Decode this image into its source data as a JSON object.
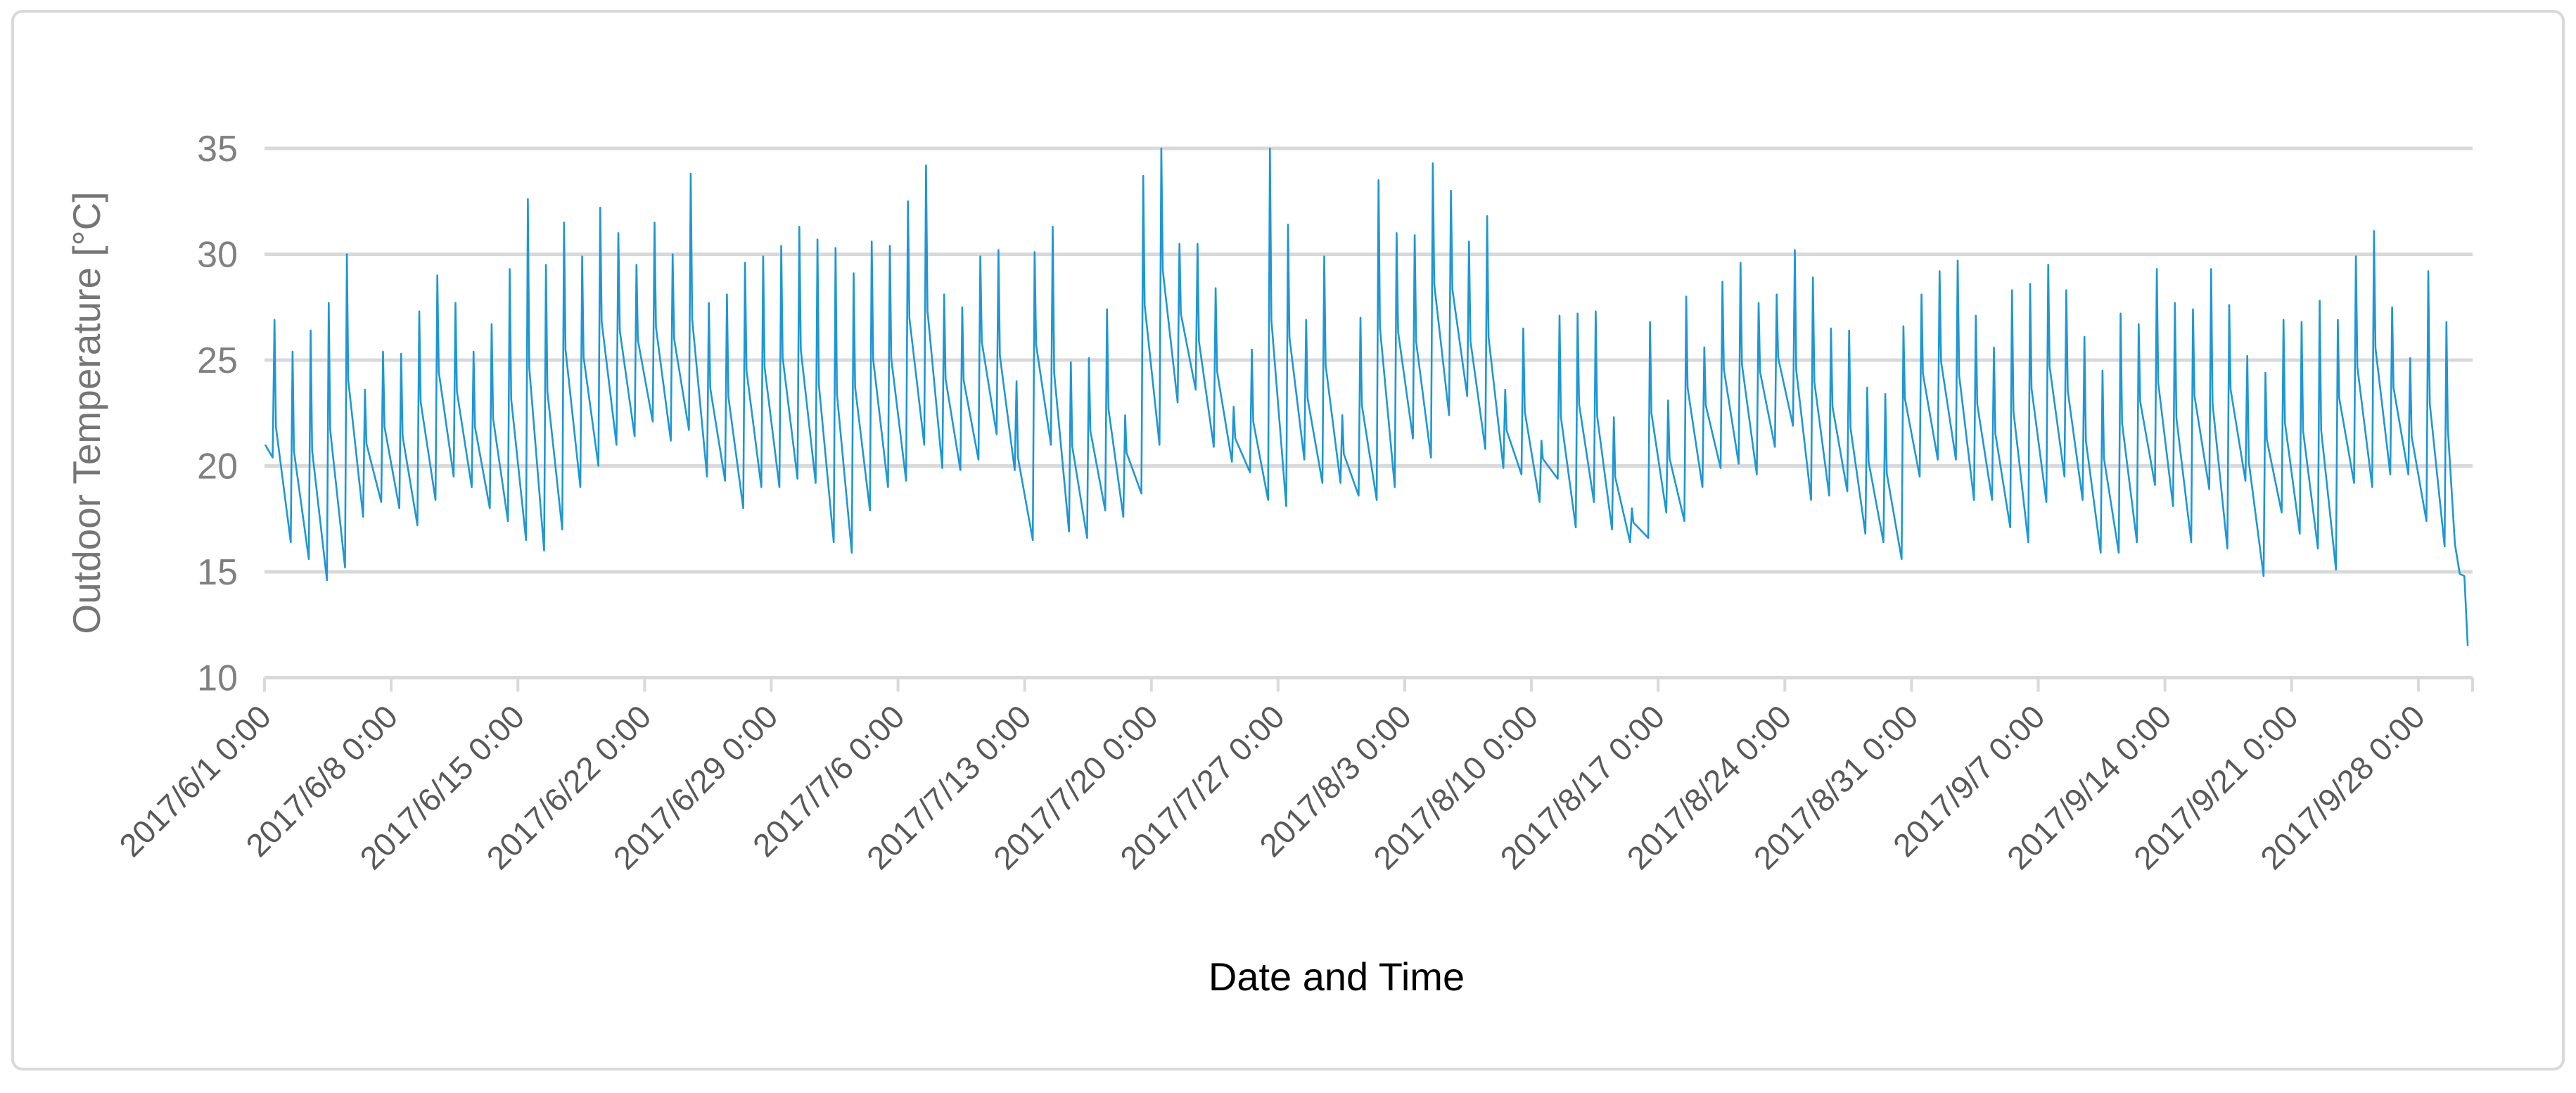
{
  "chart_data": {
    "type": "line",
    "title": "",
    "xlabel": "Date and Time",
    "ylabel": "Outdoor Temperature [°C]",
    "ylim": [
      10,
      35
    ],
    "y_ticks": [
      35,
      30,
      25,
      20,
      15,
      10
    ],
    "grid": "horizontal-only",
    "legend": "none",
    "x_tick_interval_days": 7,
    "x_tick_labels": [
      "2017/6/1 0:00",
      "2017/6/8 0:00",
      "2017/6/15 0:00",
      "2017/6/22 0:00",
      "2017/6/29 0:00",
      "2017/7/6 0:00",
      "2017/7/13 0:00",
      "2017/7/20 0:00",
      "2017/7/27 0:00",
      "2017/8/3 0:00",
      "2017/8/10 0:00",
      "2017/8/17 0:00",
      "2017/8/24 0:00",
      "2017/8/31 0:00",
      "2017/9/7 0:00",
      "2017/9/14 0:00",
      "2017/9/21 0:00",
      "2017/9/28 0:00"
    ],
    "series_name": "Outdoor Temperature",
    "unit": "°C",
    "start_value_jun1_0000": 21.0,
    "daily_min_max": [
      {
        "date": "2017/6/1",
        "min": 20.4,
        "max": 26.9
      },
      {
        "date": "2017/6/2",
        "min": 16.4,
        "max": 25.4
      },
      {
        "date": "2017/6/3",
        "min": 15.6,
        "max": 26.4
      },
      {
        "date": "2017/6/4",
        "min": 14.6,
        "max": 27.7
      },
      {
        "date": "2017/6/5",
        "min": 15.2,
        "max": 30.0
      },
      {
        "date": "2017/6/6",
        "min": 17.6,
        "max": 23.6
      },
      {
        "date": "2017/6/7",
        "min": 18.3,
        "max": 25.4
      },
      {
        "date": "2017/6/8",
        "min": 18.0,
        "max": 25.3
      },
      {
        "date": "2017/6/9",
        "min": 17.2,
        "max": 27.3
      },
      {
        "date": "2017/6/10",
        "min": 18.4,
        "max": 29.0
      },
      {
        "date": "2017/6/11",
        "min": 19.5,
        "max": 27.7
      },
      {
        "date": "2017/6/12",
        "min": 19.0,
        "max": 25.4
      },
      {
        "date": "2017/6/13",
        "min": 18.0,
        "max": 26.7
      },
      {
        "date": "2017/6/14",
        "min": 17.4,
        "max": 29.3
      },
      {
        "date": "2017/6/15",
        "min": 16.5,
        "max": 32.6
      },
      {
        "date": "2017/6/16",
        "min": 16.0,
        "max": 29.5
      },
      {
        "date": "2017/6/17",
        "min": 17.0,
        "max": 31.5
      },
      {
        "date": "2017/6/18",
        "min": 19.0,
        "max": 29.9
      },
      {
        "date": "2017/6/19",
        "min": 20.0,
        "max": 32.2
      },
      {
        "date": "2017/6/20",
        "min": 21.0,
        "max": 31.0
      },
      {
        "date": "2017/6/21",
        "min": 21.4,
        "max": 29.5
      },
      {
        "date": "2017/6/22",
        "min": 22.1,
        "max": 31.5
      },
      {
        "date": "2017/6/23",
        "min": 21.2,
        "max": 30.0
      },
      {
        "date": "2017/6/24",
        "min": 21.7,
        "max": 33.8
      },
      {
        "date": "2017/6/25",
        "min": 19.5,
        "max": 27.7
      },
      {
        "date": "2017/6/26",
        "min": 19.3,
        "max": 28.1
      },
      {
        "date": "2017/6/27",
        "min": 18.0,
        "max": 29.6
      },
      {
        "date": "2017/6/28",
        "min": 19.0,
        "max": 29.9
      },
      {
        "date": "2017/6/29",
        "min": 19.0,
        "max": 30.4
      },
      {
        "date": "2017/6/30",
        "min": 19.4,
        "max": 31.3
      },
      {
        "date": "2017/7/1",
        "min": 19.2,
        "max": 30.7
      },
      {
        "date": "2017/7/2",
        "min": 16.4,
        "max": 30.3
      },
      {
        "date": "2017/7/3",
        "min": 15.9,
        "max": 29.1
      },
      {
        "date": "2017/7/4",
        "min": 17.9,
        "max": 30.6
      },
      {
        "date": "2017/7/5",
        "min": 19.0,
        "max": 30.4
      },
      {
        "date": "2017/7/6",
        "min": 19.3,
        "max": 32.5
      },
      {
        "date": "2017/7/7",
        "min": 21.0,
        "max": 34.2
      },
      {
        "date": "2017/7/8",
        "min": 19.9,
        "max": 28.1
      },
      {
        "date": "2017/7/9",
        "min": 19.8,
        "max": 27.5
      },
      {
        "date": "2017/7/10",
        "min": 20.3,
        "max": 29.9
      },
      {
        "date": "2017/7/11",
        "min": 21.5,
        "max": 30.2
      },
      {
        "date": "2017/7/12",
        "min": 19.8,
        "max": 24.0
      },
      {
        "date": "2017/7/13",
        "min": 16.5,
        "max": 30.1
      },
      {
        "date": "2017/7/14",
        "min": 21.0,
        "max": 31.3
      },
      {
        "date": "2017/7/15",
        "min": 16.9,
        "max": 24.9
      },
      {
        "date": "2017/7/16",
        "min": 16.6,
        "max": 25.1
      },
      {
        "date": "2017/7/17",
        "min": 17.9,
        "max": 27.4
      },
      {
        "date": "2017/7/18",
        "min": 17.6,
        "max": 22.4
      },
      {
        "date": "2017/7/19",
        "min": 18.7,
        "max": 33.7
      },
      {
        "date": "2017/7/20",
        "min": 21.0,
        "max": 35.0
      },
      {
        "date": "2017/7/21",
        "min": 23.0,
        "max": 30.5
      },
      {
        "date": "2017/7/22",
        "min": 23.6,
        "max": 30.5
      },
      {
        "date": "2017/7/23",
        "min": 20.9,
        "max": 28.4
      },
      {
        "date": "2017/7/24",
        "min": 20.2,
        "max": 22.8
      },
      {
        "date": "2017/7/25",
        "min": 19.7,
        "max": 25.5
      },
      {
        "date": "2017/7/26",
        "min": 18.4,
        "max": 35.0
      },
      {
        "date": "2017/7/27",
        "min": 18.1,
        "max": 31.4
      },
      {
        "date": "2017/7/28",
        "min": 20.3,
        "max": 26.9
      },
      {
        "date": "2017/7/29",
        "min": 19.2,
        "max": 29.9
      },
      {
        "date": "2017/7/30",
        "min": 19.2,
        "max": 22.4
      },
      {
        "date": "2017/7/31",
        "min": 18.6,
        "max": 27.0
      },
      {
        "date": "2017/8/1",
        "min": 18.4,
        "max": 33.5
      },
      {
        "date": "2017/8/2",
        "min": 19.0,
        "max": 31.0
      },
      {
        "date": "2017/8/3",
        "min": 21.3,
        "max": 30.9
      },
      {
        "date": "2017/8/4",
        "min": 20.4,
        "max": 34.3
      },
      {
        "date": "2017/8/5",
        "min": 22.4,
        "max": 33.0
      },
      {
        "date": "2017/8/6",
        "min": 23.3,
        "max": 30.6
      },
      {
        "date": "2017/8/7",
        "min": 20.8,
        "max": 31.8
      },
      {
        "date": "2017/8/8",
        "min": 19.9,
        "max": 23.6
      },
      {
        "date": "2017/8/9",
        "min": 19.6,
        "max": 26.5
      },
      {
        "date": "2017/8/10",
        "min": 18.3,
        "max": 21.2
      },
      {
        "date": "2017/8/11",
        "min": 19.4,
        "max": 27.1
      },
      {
        "date": "2017/8/12",
        "min": 17.1,
        "max": 27.2
      },
      {
        "date": "2017/8/13",
        "min": 18.3,
        "max": 27.3
      },
      {
        "date": "2017/8/14",
        "min": 17.0,
        "max": 22.3
      },
      {
        "date": "2017/8/15",
        "min": 16.4,
        "max": 18.0
      },
      {
        "date": "2017/8/16",
        "min": 16.6,
        "max": 26.8
      },
      {
        "date": "2017/8/17",
        "min": 17.8,
        "max": 23.1
      },
      {
        "date": "2017/8/18",
        "min": 17.4,
        "max": 28.0
      },
      {
        "date": "2017/8/19",
        "min": 19.0,
        "max": 25.6
      },
      {
        "date": "2017/8/20",
        "min": 19.9,
        "max": 28.7
      },
      {
        "date": "2017/8/21",
        "min": 20.1,
        "max": 29.6
      },
      {
        "date": "2017/8/22",
        "min": 19.6,
        "max": 27.7
      },
      {
        "date": "2017/8/23",
        "min": 20.9,
        "max": 28.1
      },
      {
        "date": "2017/8/24",
        "min": 21.9,
        "max": 30.2
      },
      {
        "date": "2017/8/25",
        "min": 18.4,
        "max": 28.9
      },
      {
        "date": "2017/8/26",
        "min": 18.6,
        "max": 26.5
      },
      {
        "date": "2017/8/27",
        "min": 18.8,
        "max": 26.4
      },
      {
        "date": "2017/8/28",
        "min": 16.8,
        "max": 23.7
      },
      {
        "date": "2017/8/29",
        "min": 16.4,
        "max": 23.4
      },
      {
        "date": "2017/8/30",
        "min": 15.6,
        "max": 26.6
      },
      {
        "date": "2017/8/31",
        "min": 19.5,
        "max": 28.1
      },
      {
        "date": "2017/9/1",
        "min": 20.3,
        "max": 29.2
      },
      {
        "date": "2017/9/2",
        "min": 20.3,
        "max": 29.7
      },
      {
        "date": "2017/9/3",
        "min": 18.4,
        "max": 27.1
      },
      {
        "date": "2017/9/4",
        "min": 18.4,
        "max": 25.6
      },
      {
        "date": "2017/9/5",
        "min": 17.1,
        "max": 28.3
      },
      {
        "date": "2017/9/6",
        "min": 16.4,
        "max": 28.6
      },
      {
        "date": "2017/9/7",
        "min": 18.3,
        "max": 29.5
      },
      {
        "date": "2017/9/8",
        "min": 19.5,
        "max": 28.3
      },
      {
        "date": "2017/9/9",
        "min": 18.4,
        "max": 26.1
      },
      {
        "date": "2017/9/10",
        "min": 15.9,
        "max": 24.5
      },
      {
        "date": "2017/9/11",
        "min": 15.9,
        "max": 27.2
      },
      {
        "date": "2017/9/12",
        "min": 16.4,
        "max": 26.7
      },
      {
        "date": "2017/9/13",
        "min": 19.1,
        "max": 29.3
      },
      {
        "date": "2017/9/14",
        "min": 18.1,
        "max": 27.7
      },
      {
        "date": "2017/9/15",
        "min": 16.4,
        "max": 27.4
      },
      {
        "date": "2017/9/16",
        "min": 18.9,
        "max": 29.3
      },
      {
        "date": "2017/9/17",
        "min": 16.1,
        "max": 27.6
      },
      {
        "date": "2017/9/18",
        "min": 19.3,
        "max": 25.2
      },
      {
        "date": "2017/9/19",
        "min": 14.8,
        "max": 24.4
      },
      {
        "date": "2017/9/20",
        "min": 17.8,
        "max": 26.9
      },
      {
        "date": "2017/9/21",
        "min": 16.8,
        "max": 26.8
      },
      {
        "date": "2017/9/22",
        "min": 16.1,
        "max": 27.8
      },
      {
        "date": "2017/9/23",
        "min": 15.1,
        "max": 26.9
      },
      {
        "date": "2017/9/24",
        "min": 19.2,
        "max": 29.9
      },
      {
        "date": "2017/9/25",
        "min": 19.0,
        "max": 31.1
      },
      {
        "date": "2017/9/26",
        "min": 19.6,
        "max": 27.5
      },
      {
        "date": "2017/9/27",
        "min": 19.6,
        "max": 25.1
      },
      {
        "date": "2017/9/28",
        "min": 17.4,
        "max": 29.2
      },
      {
        "date": "2017/9/29",
        "min": 16.2,
        "max": 26.8
      }
    ],
    "final_partial_day": {
      "date": "2017/9/30",
      "points_hour_temp": [
        [
          0.5,
          16.3
        ],
        [
          7.0,
          14.9
        ],
        [
          13.0,
          14.8
        ],
        [
          17.5,
          11.5
        ]
      ]
    },
    "colors": {
      "line": "#1e97d4",
      "grid": "#d9d9d9",
      "axis": "#d9d9d9",
      "y_tick_label": "#808080",
      "x_tick_label": "#595959",
      "y_axis_title": "#757575",
      "x_axis_title": "#000000",
      "chart_border": "#d9d9d9",
      "background": "#ffffff"
    }
  }
}
